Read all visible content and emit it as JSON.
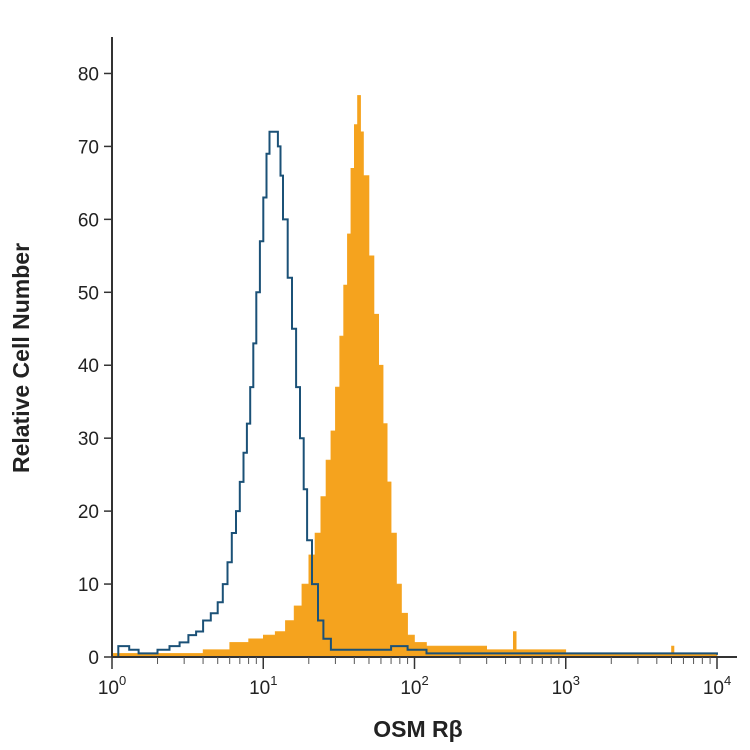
{
  "chart_data": {
    "type": "histogram",
    "xlabel": "OSM Rβ",
    "ylabel": "Relative Cell Number",
    "x_scale": "log",
    "xlim": [
      1,
      10000
    ],
    "ylim": [
      0,
      85
    ],
    "y_ticks": [
      0,
      10,
      20,
      30,
      40,
      50,
      60,
      70,
      80
    ],
    "x_ticks": [
      {
        "value": 1,
        "base": "10",
        "exp": "0"
      },
      {
        "value": 10,
        "base": "10",
        "exp": "1"
      },
      {
        "value": 100,
        "base": "10",
        "exp": "2"
      },
      {
        "value": 1000,
        "base": "10",
        "exp": "3"
      },
      {
        "value": 10000,
        "base": "10",
        "exp": "4"
      }
    ],
    "series": [
      {
        "style": "filled",
        "color": "#f5a31e",
        "points": [
          [
            1.0,
            0.5
          ],
          [
            2.0,
            0.5
          ],
          [
            4.0,
            1.0
          ],
          [
            6.0,
            2.0
          ],
          [
            8.0,
            2.5
          ],
          [
            10.0,
            3.0
          ],
          [
            12.0,
            3.5
          ],
          [
            14.0,
            5.0
          ],
          [
            16.0,
            7.0
          ],
          [
            18.0,
            10.0
          ],
          [
            20.0,
            14.0
          ],
          [
            22.0,
            17.0
          ],
          [
            24.0,
            22.0
          ],
          [
            26.0,
            27.0
          ],
          [
            28.0,
            31.0
          ],
          [
            30.0,
            37.0
          ],
          [
            32.0,
            44.0
          ],
          [
            34.0,
            51.0
          ],
          [
            36.0,
            58.0
          ],
          [
            38.0,
            67.0
          ],
          [
            40.0,
            73.0
          ],
          [
            42.0,
            77.0
          ],
          [
            44.0,
            72.0
          ],
          [
            46.0,
            66.0
          ],
          [
            50.0,
            55.0
          ],
          [
            54.0,
            47.0
          ],
          [
            58.0,
            40.0
          ],
          [
            62.0,
            32.0
          ],
          [
            66.0,
            24.0
          ],
          [
            70.0,
            17.0
          ],
          [
            76.0,
            10.0
          ],
          [
            82.0,
            6.0
          ],
          [
            90.0,
            3.0
          ],
          [
            100.0,
            2.0
          ],
          [
            120.0,
            1.5
          ],
          [
            150.0,
            1.5
          ],
          [
            200.0,
            1.5
          ],
          [
            300.0,
            1.0
          ],
          [
            450.0,
            3.5
          ],
          [
            470.0,
            1.0
          ],
          [
            600.0,
            1.0
          ],
          [
            1000.0,
            0.5
          ],
          [
            3000.0,
            0.5
          ],
          [
            5000.0,
            1.5
          ],
          [
            5200.0,
            0.5
          ],
          [
            10000.0,
            0.3
          ]
        ]
      },
      {
        "style": "outline",
        "color": "#1b5177",
        "points": [
          [
            1.0,
            0.0
          ],
          [
            1.1,
            1.5
          ],
          [
            1.3,
            1.0
          ],
          [
            1.5,
            0.5
          ],
          [
            2.0,
            1.0
          ],
          [
            2.4,
            1.5
          ],
          [
            2.8,
            2.0
          ],
          [
            3.2,
            3.0
          ],
          [
            3.6,
            3.5
          ],
          [
            4.0,
            5.0
          ],
          [
            4.5,
            6.0
          ],
          [
            5.0,
            7.5
          ],
          [
            5.4,
            10.0
          ],
          [
            5.8,
            13.0
          ],
          [
            6.2,
            17.0
          ],
          [
            6.6,
            20.0
          ],
          [
            7.0,
            24.0
          ],
          [
            7.4,
            28.0
          ],
          [
            7.8,
            32.0
          ],
          [
            8.2,
            37.0
          ],
          [
            8.6,
            43.0
          ],
          [
            9.0,
            50.0
          ],
          [
            9.5,
            57.0
          ],
          [
            10.0,
            63.0
          ],
          [
            10.5,
            69.0
          ],
          [
            11.0,
            72.0
          ],
          [
            11.5,
            72.0
          ],
          [
            12.0,
            72.0
          ],
          [
            12.5,
            70.0
          ],
          [
            13.0,
            66.0
          ],
          [
            13.5,
            60.0
          ],
          [
            14.5,
            52.0
          ],
          [
            15.5,
            45.0
          ],
          [
            16.5,
            37.0
          ],
          [
            17.5,
            30.0
          ],
          [
            18.5,
            23.0
          ],
          [
            19.5,
            16.0
          ],
          [
            21.0,
            10.0
          ],
          [
            23.0,
            5.0
          ],
          [
            25.0,
            2.5
          ],
          [
            28.0,
            1.0
          ],
          [
            35.0,
            1.0
          ],
          [
            50.0,
            1.0
          ],
          [
            70.0,
            1.5
          ],
          [
            90.0,
            1.0
          ],
          [
            120.0,
            0.5
          ],
          [
            10000.0,
            0.3
          ]
        ]
      }
    ]
  }
}
